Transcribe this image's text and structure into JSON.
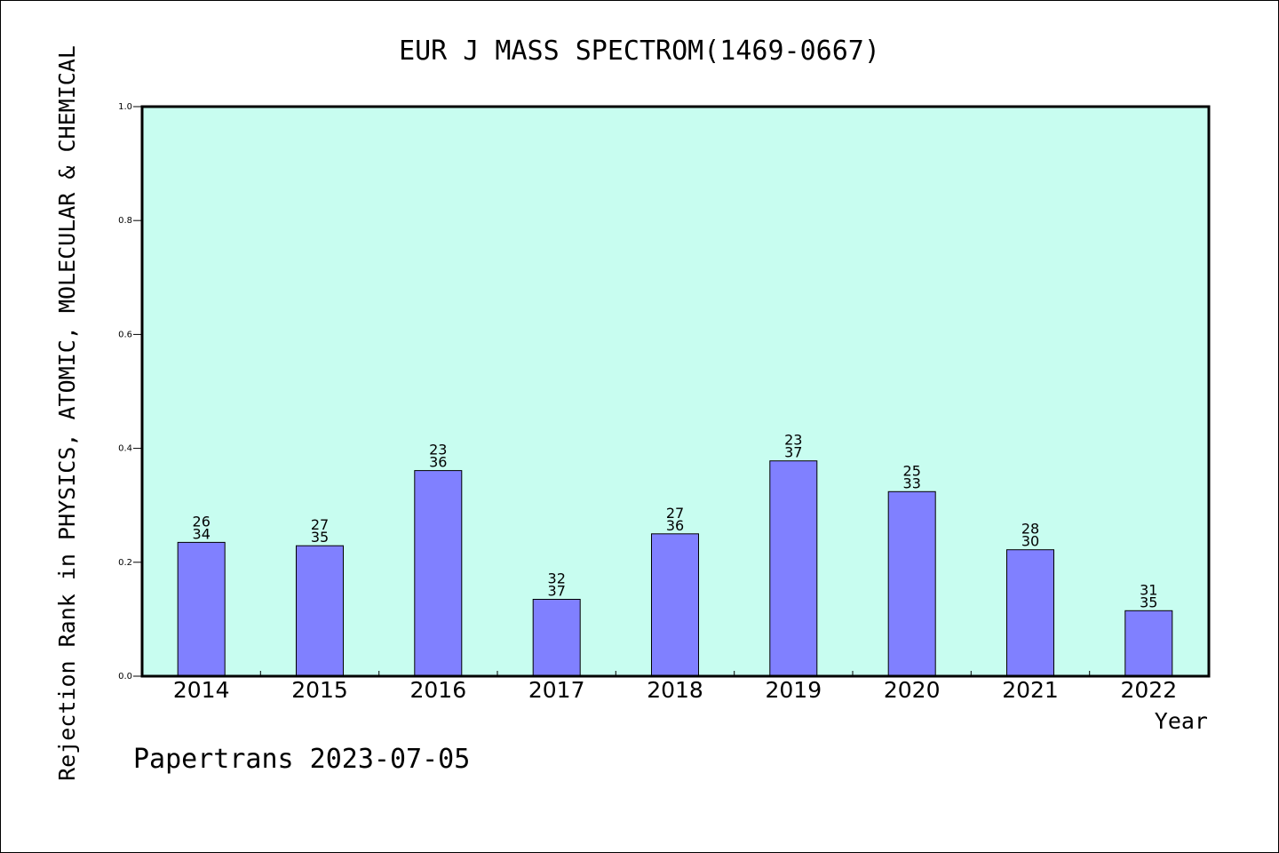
{
  "chart_data": {
    "type": "bar",
    "title": "EUR J MASS SPECTROM(1469-0667)",
    "xlabel": "Year",
    "ylabel": "Rejection Rank in PHYSICS, ATOMIC, MOLECULAR & CHEMICAL",
    "categories": [
      "2014",
      "2015",
      "2016",
      "2017",
      "2018",
      "2019",
      "2020",
      "2021",
      "2022"
    ],
    "values": [
      0.235,
      0.229,
      0.361,
      0.135,
      0.25,
      0.378,
      0.324,
      0.222,
      0.115
    ],
    "label_top": [
      "26",
      "27",
      "23",
      "32",
      "27",
      "23",
      "25",
      "28",
      "31"
    ],
    "label_bottom": [
      "34",
      "35",
      "36",
      "37",
      "36",
      "37",
      "33",
      "30",
      "35"
    ],
    "ylim": [
      0,
      1.0
    ],
    "yticks": [
      "0.0",
      "0.2",
      "0.4",
      "0.6",
      "0.8",
      "1.0"
    ],
    "grid": false,
    "colors": {
      "plot_background": "#c8fdf0",
      "bar_fill": "#8080ff",
      "bar_stroke": "#000000"
    }
  },
  "footer": {
    "credit": "Papertrans 2023-07-05"
  }
}
